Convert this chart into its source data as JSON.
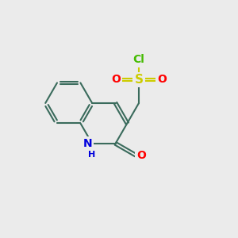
{
  "bg_color": "#ebebeb",
  "bond_color": "#3a6b5c",
  "bond_lw": 1.5,
  "dbo": 0.065,
  "atom_colors": {
    "N": "#0000dd",
    "O": "#ff0000",
    "S": "#cccc00",
    "Cl": "#44bb00"
  },
  "font_size": 10,
  "font_size_h": 8,
  "BL": 1.0,
  "xlim": [
    0,
    10
  ],
  "ylim": [
    0,
    10
  ],
  "figsize": [
    3.0,
    3.0
  ],
  "dpi": 100
}
